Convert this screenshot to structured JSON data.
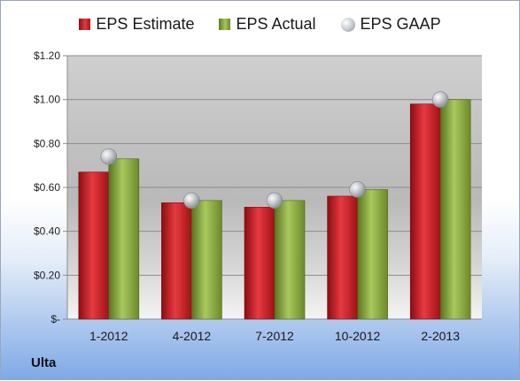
{
  "legend": {
    "estimate_label": "EPS Estimate",
    "actual_label": "EPS Actual",
    "gaap_label": "EPS GAAP"
  },
  "company": "Ulta",
  "colors": {
    "estimate": "#c9191f",
    "actual": "#8fae45",
    "gaap": "#b8bcc4",
    "plot_bg": "#c8c8c8"
  },
  "chart_data": {
    "type": "bar",
    "categories": [
      "1-2012",
      "4-2012",
      "7-2012",
      "10-2012",
      "2-2013"
    ],
    "series": [
      {
        "name": "EPS Estimate",
        "type": "bar",
        "values": [
          0.67,
          0.53,
          0.51,
          0.56,
          0.98
        ]
      },
      {
        "name": "EPS Actual",
        "type": "bar",
        "values": [
          0.73,
          0.54,
          0.54,
          0.59,
          1.0
        ]
      },
      {
        "name": "EPS GAAP",
        "type": "scatter",
        "values": [
          0.74,
          0.54,
          0.54,
          0.59,
          1.0
        ]
      }
    ],
    "ylim": [
      0,
      1.2
    ],
    "yticks": [
      0,
      0.2,
      0.4,
      0.6,
      0.8,
      1.0,
      1.2
    ],
    "ytick_labels": [
      "$-",
      "$0.20",
      "$0.40",
      "$0.60",
      "$0.80",
      "$1.00",
      "$1.20"
    ],
    "grid": true,
    "legend_position": "top"
  }
}
